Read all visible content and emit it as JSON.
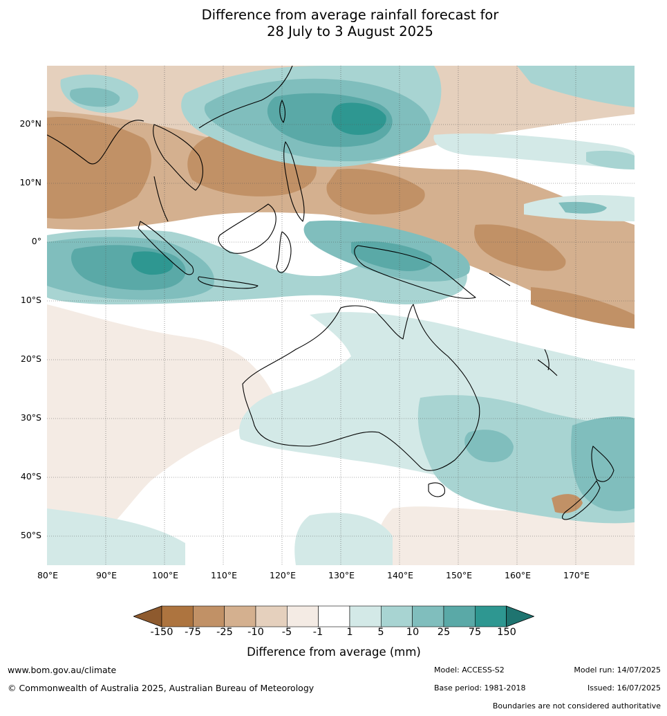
{
  "title": {
    "line1": "Difference from average rainfall forecast for",
    "line2": "28 July to 3 August 2025"
  },
  "map": {
    "lat_labels": [
      "20°N",
      "10°N",
      "0°",
      "10°S",
      "20°S",
      "30°S",
      "40°S",
      "50°S"
    ],
    "lon_labels": [
      "80°E",
      "90°E",
      "100°E",
      "110°E",
      "120°E",
      "130°E",
      "140°E",
      "150°E",
      "160°E",
      "170°E"
    ],
    "lon_range": [
      80,
      180
    ],
    "lat_range": [
      -55,
      30
    ],
    "grid": true
  },
  "colorbar": {
    "ticks": [
      "-150",
      "-75",
      "-25",
      "-10",
      "-5",
      "-1",
      "1",
      "5",
      "10",
      "25",
      "75",
      "150"
    ],
    "colors": [
      "#8e5a2e",
      "#ad743f",
      "#c19166",
      "#d4b08f",
      "#e5d0bd",
      "#f4ebe4",
      "#ffffff",
      "#d3e9e7",
      "#a8d4d2",
      "#80bebd",
      "#5aa9a7",
      "#2e9791",
      "#1f7470"
    ],
    "label": "Difference from average (mm)"
  },
  "footer": {
    "website": "www.bom.gov.au/climate",
    "copyright": "© Commonwealth of Australia 2025, Australian Bureau of Meteorology",
    "model": "Model: ACCESS-S2",
    "base_period": "Base period: 1981-2018",
    "model_run": "Model run: 14/07/2025",
    "issued": "Issued: 16/07/2025",
    "disclaimer": "Boundaries are not considered authoritative"
  }
}
